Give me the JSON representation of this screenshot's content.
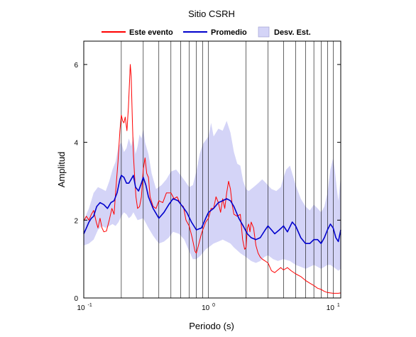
{
  "chart_data": {
    "type": "line",
    "title": "Sitio CSRH",
    "xlabel": "Periodo (s)",
    "ylabel": "Amplitud",
    "x_scale": "log",
    "xlim": [
      0.1,
      11.5
    ],
    "ylim": [
      0,
      6.6
    ],
    "grid": "vertical-log",
    "legend_placement": "top",
    "x_ticks": [
      {
        "value": 0.1,
        "base": "10",
        "exp": "-1"
      },
      {
        "value": 1,
        "base": "10",
        "exp": "0"
      },
      {
        "value": 10,
        "base": "10",
        "exp": "1"
      }
    ],
    "y_ticks": [
      0,
      2,
      4,
      6
    ],
    "legend": [
      {
        "label": "Este evento",
        "kind": "line",
        "color": "#ff0000"
      },
      {
        "label": "Promedio",
        "kind": "line",
        "color": "#0000cc"
      },
      {
        "label": "Desv. Est.",
        "kind": "band",
        "color": "#d4d4f7"
      }
    ],
    "series": [
      {
        "name": "Este evento",
        "color": "#ff0000",
        "points": [
          [
            0.1,
            1.98
          ],
          [
            0.105,
            2.1
          ],
          [
            0.11,
            2.0
          ],
          [
            0.115,
            2.15
          ],
          [
            0.12,
            2.25
          ],
          [
            0.126,
            1.95
          ],
          [
            0.13,
            1.8
          ],
          [
            0.135,
            2.05
          ],
          [
            0.14,
            1.8
          ],
          [
            0.145,
            1.7
          ],
          [
            0.152,
            1.72
          ],
          [
            0.16,
            2.0
          ],
          [
            0.168,
            2.3
          ],
          [
            0.175,
            2.15
          ],
          [
            0.18,
            2.7
          ],
          [
            0.188,
            3.5
          ],
          [
            0.195,
            4.3
          ],
          [
            0.2,
            4.7
          ],
          [
            0.205,
            4.55
          ],
          [
            0.21,
            4.5
          ],
          [
            0.215,
            4.65
          ],
          [
            0.222,
            4.3
          ],
          [
            0.228,
            4.9
          ],
          [
            0.232,
            5.45
          ],
          [
            0.236,
            6.0
          ],
          [
            0.24,
            5.7
          ],
          [
            0.245,
            4.6
          ],
          [
            0.25,
            3.7
          ],
          [
            0.256,
            3.1
          ],
          [
            0.262,
            2.6
          ],
          [
            0.27,
            2.3
          ],
          [
            0.28,
            2.35
          ],
          [
            0.29,
            2.6
          ],
          [
            0.3,
            3.3
          ],
          [
            0.31,
            3.6
          ],
          [
            0.32,
            3.2
          ],
          [
            0.33,
            3.1
          ],
          [
            0.34,
            2.6
          ],
          [
            0.36,
            2.35
          ],
          [
            0.38,
            2.3
          ],
          [
            0.4,
            2.5
          ],
          [
            0.43,
            2.45
          ],
          [
            0.46,
            2.7
          ],
          [
            0.5,
            2.7
          ],
          [
            0.53,
            2.55
          ],
          [
            0.56,
            2.6
          ],
          [
            0.6,
            2.4
          ],
          [
            0.63,
            2.35
          ],
          [
            0.66,
            2.0
          ],
          [
            0.7,
            1.85
          ],
          [
            0.74,
            1.55
          ],
          [
            0.78,
            1.2
          ],
          [
            0.8,
            1.15
          ],
          [
            0.83,
            1.35
          ],
          [
            0.87,
            1.6
          ],
          [
            0.9,
            1.75
          ],
          [
            0.95,
            1.95
          ],
          [
            1.0,
            2.05
          ],
          [
            1.05,
            2.3
          ],
          [
            1.1,
            2.3
          ],
          [
            1.15,
            2.6
          ],
          [
            1.2,
            2.45
          ],
          [
            1.25,
            2.2
          ],
          [
            1.3,
            2.55
          ],
          [
            1.35,
            2.3
          ],
          [
            1.4,
            2.7
          ],
          [
            1.45,
            3.0
          ],
          [
            1.5,
            2.8
          ],
          [
            1.55,
            2.4
          ],
          [
            1.6,
            2.15
          ],
          [
            1.7,
            2.1
          ],
          [
            1.8,
            2.15
          ],
          [
            1.88,
            1.5
          ],
          [
            1.95,
            1.25
          ],
          [
            2.0,
            1.3
          ],
          [
            2.05,
            1.8
          ],
          [
            2.1,
            1.9
          ],
          [
            2.15,
            1.7
          ],
          [
            2.2,
            1.95
          ],
          [
            2.3,
            1.8
          ],
          [
            2.4,
            1.35
          ],
          [
            2.5,
            1.15
          ],
          [
            2.6,
            1.05
          ],
          [
            2.7,
            1.0
          ],
          [
            2.85,
            0.95
          ],
          [
            3.0,
            0.9
          ],
          [
            3.2,
            0.7
          ],
          [
            3.4,
            0.65
          ],
          [
            3.6,
            0.72
          ],
          [
            3.8,
            0.78
          ],
          [
            4.0,
            0.72
          ],
          [
            4.3,
            0.78
          ],
          [
            4.6,
            0.7
          ],
          [
            5.0,
            0.62
          ],
          [
            5.5,
            0.55
          ],
          [
            6.0,
            0.45
          ],
          [
            6.5,
            0.38
          ],
          [
            7.0,
            0.32
          ],
          [
            7.5,
            0.25
          ],
          [
            8.0,
            0.22
          ],
          [
            8.5,
            0.17
          ],
          [
            9.0,
            0.14
          ],
          [
            9.5,
            0.13
          ],
          [
            10.0,
            0.12
          ],
          [
            10.5,
            0.12
          ],
          [
            11.0,
            0.12
          ],
          [
            11.5,
            0.13
          ]
        ]
      },
      {
        "name": "Promedio",
        "color": "#0000cc",
        "points": [
          [
            0.1,
            1.65
          ],
          [
            0.105,
            1.8
          ],
          [
            0.11,
            1.95
          ],
          [
            0.115,
            2.05
          ],
          [
            0.12,
            2.1
          ],
          [
            0.127,
            2.35
          ],
          [
            0.135,
            2.45
          ],
          [
            0.145,
            2.4
          ],
          [
            0.155,
            2.3
          ],
          [
            0.165,
            2.45
          ],
          [
            0.175,
            2.5
          ],
          [
            0.185,
            2.7
          ],
          [
            0.195,
            3.05
          ],
          [
            0.2,
            3.15
          ],
          [
            0.21,
            3.1
          ],
          [
            0.22,
            2.95
          ],
          [
            0.23,
            2.95
          ],
          [
            0.24,
            3.05
          ],
          [
            0.25,
            3.15
          ],
          [
            0.26,
            2.85
          ],
          [
            0.275,
            2.75
          ],
          [
            0.29,
            2.95
          ],
          [
            0.3,
            3.1
          ],
          [
            0.315,
            2.9
          ],
          [
            0.33,
            2.6
          ],
          [
            0.36,
            2.3
          ],
          [
            0.4,
            2.05
          ],
          [
            0.44,
            2.2
          ],
          [
            0.48,
            2.4
          ],
          [
            0.52,
            2.55
          ],
          [
            0.57,
            2.5
          ],
          [
            0.62,
            2.35
          ],
          [
            0.67,
            2.2
          ],
          [
            0.73,
            1.95
          ],
          [
            0.8,
            1.75
          ],
          [
            0.88,
            1.8
          ],
          [
            0.95,
            2.05
          ],
          [
            1.0,
            2.2
          ],
          [
            1.1,
            2.3
          ],
          [
            1.2,
            2.45
          ],
          [
            1.3,
            2.5
          ],
          [
            1.4,
            2.55
          ],
          [
            1.5,
            2.5
          ],
          [
            1.6,
            2.35
          ],
          [
            1.75,
            2.05
          ],
          [
            1.9,
            1.85
          ],
          [
            2.05,
            1.65
          ],
          [
            2.2,
            1.55
          ],
          [
            2.4,
            1.5
          ],
          [
            2.6,
            1.55
          ],
          [
            2.85,
            1.75
          ],
          [
            3.0,
            1.85
          ],
          [
            3.2,
            1.75
          ],
          [
            3.4,
            1.65
          ],
          [
            3.7,
            1.75
          ],
          [
            4.0,
            1.85
          ],
          [
            4.3,
            1.7
          ],
          [
            4.7,
            1.95
          ],
          [
            5.0,
            1.85
          ],
          [
            5.5,
            1.55
          ],
          [
            6.0,
            1.4
          ],
          [
            6.5,
            1.4
          ],
          [
            7.0,
            1.5
          ],
          [
            7.5,
            1.5
          ],
          [
            8.0,
            1.4
          ],
          [
            8.5,
            1.55
          ],
          [
            9.0,
            1.75
          ],
          [
            9.5,
            1.9
          ],
          [
            10.0,
            1.8
          ],
          [
            10.5,
            1.55
          ],
          [
            11.0,
            1.45
          ],
          [
            11.5,
            1.75
          ]
        ]
      }
    ],
    "band": {
      "name": "Desv. Est.",
      "color": "#d4d4f7",
      "upper": [
        [
          0.1,
          2.0
        ],
        [
          0.11,
          2.3
        ],
        [
          0.12,
          2.7
        ],
        [
          0.13,
          2.85
        ],
        [
          0.14,
          2.8
        ],
        [
          0.15,
          2.75
        ],
        [
          0.16,
          3.0
        ],
        [
          0.17,
          3.3
        ],
        [
          0.18,
          3.5
        ],
        [
          0.19,
          3.9
        ],
        [
          0.2,
          4.0
        ],
        [
          0.21,
          3.75
        ],
        [
          0.22,
          3.85
        ],
        [
          0.23,
          4.1
        ],
        [
          0.24,
          3.9
        ],
        [
          0.25,
          4.15
        ],
        [
          0.26,
          3.7
        ],
        [
          0.27,
          3.9
        ],
        [
          0.28,
          4.2
        ],
        [
          0.29,
          4.1
        ],
        [
          0.3,
          4.35
        ],
        [
          0.31,
          4.0
        ],
        [
          0.33,
          3.7
        ],
        [
          0.35,
          3.2
        ],
        [
          0.38,
          2.8
        ],
        [
          0.42,
          2.9
        ],
        [
          0.46,
          3.05
        ],
        [
          0.5,
          3.25
        ],
        [
          0.55,
          3.3
        ],
        [
          0.6,
          3.15
        ],
        [
          0.65,
          3.0
        ],
        [
          0.7,
          2.85
        ],
        [
          0.75,
          2.9
        ],
        [
          0.8,
          3.25
        ],
        [
          0.85,
          3.7
        ],
        [
          0.9,
          3.95
        ],
        [
          1.0,
          4.15
        ],
        [
          1.05,
          4.5
        ],
        [
          1.1,
          4.15
        ],
        [
          1.2,
          4.35
        ],
        [
          1.3,
          4.3
        ],
        [
          1.4,
          4.55
        ],
        [
          1.5,
          4.25
        ],
        [
          1.6,
          3.75
        ],
        [
          1.7,
          3.45
        ],
        [
          1.8,
          3.4
        ],
        [
          1.9,
          3.0
        ],
        [
          2.0,
          2.8
        ],
        [
          2.1,
          2.75
        ],
        [
          2.3,
          2.85
        ],
        [
          2.5,
          2.95
        ],
        [
          2.7,
          3.05
        ],
        [
          2.9,
          2.95
        ],
        [
          3.2,
          2.8
        ],
        [
          3.5,
          2.75
        ],
        [
          3.8,
          2.85
        ],
        [
          4.0,
          3.1
        ],
        [
          4.2,
          3.3
        ],
        [
          4.5,
          3.4
        ],
        [
          5.0,
          2.9
        ],
        [
          5.5,
          2.55
        ],
        [
          6.0,
          2.35
        ],
        [
          6.5,
          2.25
        ],
        [
          7.0,
          2.4
        ],
        [
          7.5,
          2.3
        ],
        [
          8.0,
          2.2
        ],
        [
          8.5,
          2.35
        ],
        [
          9.0,
          2.7
        ],
        [
          9.5,
          3.3
        ],
        [
          10.0,
          3.6
        ],
        [
          10.3,
          3.3
        ],
        [
          10.7,
          2.8
        ],
        [
          11.0,
          2.5
        ],
        [
          11.5,
          3.1
        ]
      ],
      "lower": [
        [
          0.1,
          1.35
        ],
        [
          0.11,
          1.4
        ],
        [
          0.12,
          1.5
        ],
        [
          0.13,
          1.75
        ],
        [
          0.14,
          1.85
        ],
        [
          0.15,
          1.8
        ],
        [
          0.16,
          1.85
        ],
        [
          0.17,
          1.9
        ],
        [
          0.18,
          1.85
        ],
        [
          0.19,
          1.95
        ],
        [
          0.2,
          2.1
        ],
        [
          0.21,
          2.2
        ],
        [
          0.22,
          2.15
        ],
        [
          0.23,
          2.05
        ],
        [
          0.24,
          2.1
        ],
        [
          0.25,
          2.2
        ],
        [
          0.27,
          2.0
        ],
        [
          0.3,
          2.05
        ],
        [
          0.33,
          1.8
        ],
        [
          0.36,
          1.6
        ],
        [
          0.4,
          1.4
        ],
        [
          0.44,
          1.45
        ],
        [
          0.48,
          1.55
        ],
        [
          0.52,
          1.7
        ],
        [
          0.58,
          1.65
        ],
        [
          0.64,
          1.5
        ],
        [
          0.7,
          1.2
        ],
        [
          0.75,
          1.0
        ],
        [
          0.8,
          1.0
        ],
        [
          0.87,
          1.1
        ],
        [
          0.95,
          1.25
        ],
        [
          1.0,
          1.3
        ],
        [
          1.1,
          1.4
        ],
        [
          1.2,
          1.45
        ],
        [
          1.3,
          1.5
        ],
        [
          1.4,
          1.45
        ],
        [
          1.5,
          1.4
        ],
        [
          1.6,
          1.3
        ],
        [
          1.8,
          1.15
        ],
        [
          2.0,
          1.05
        ],
        [
          2.2,
          0.95
        ],
        [
          2.4,
          0.9
        ],
        [
          2.6,
          0.95
        ],
        [
          2.8,
          1.05
        ],
        [
          3.0,
          1.1
        ],
        [
          3.3,
          1.0
        ],
        [
          3.6,
          0.95
        ],
        [
          4.0,
          1.0
        ],
        [
          4.5,
          0.95
        ],
        [
          5.0,
          0.85
        ],
        [
          5.5,
          0.8
        ],
        [
          6.0,
          0.75
        ],
        [
          6.5,
          0.8
        ],
        [
          7.0,
          0.85
        ],
        [
          7.5,
          0.8
        ],
        [
          8.0,
          0.75
        ],
        [
          8.5,
          0.8
        ],
        [
          9.0,
          0.85
        ],
        [
          9.5,
          0.85
        ],
        [
          10.0,
          0.8
        ],
        [
          10.5,
          0.75
        ],
        [
          11.0,
          0.7
        ],
        [
          11.5,
          0.75
        ]
      ]
    }
  }
}
